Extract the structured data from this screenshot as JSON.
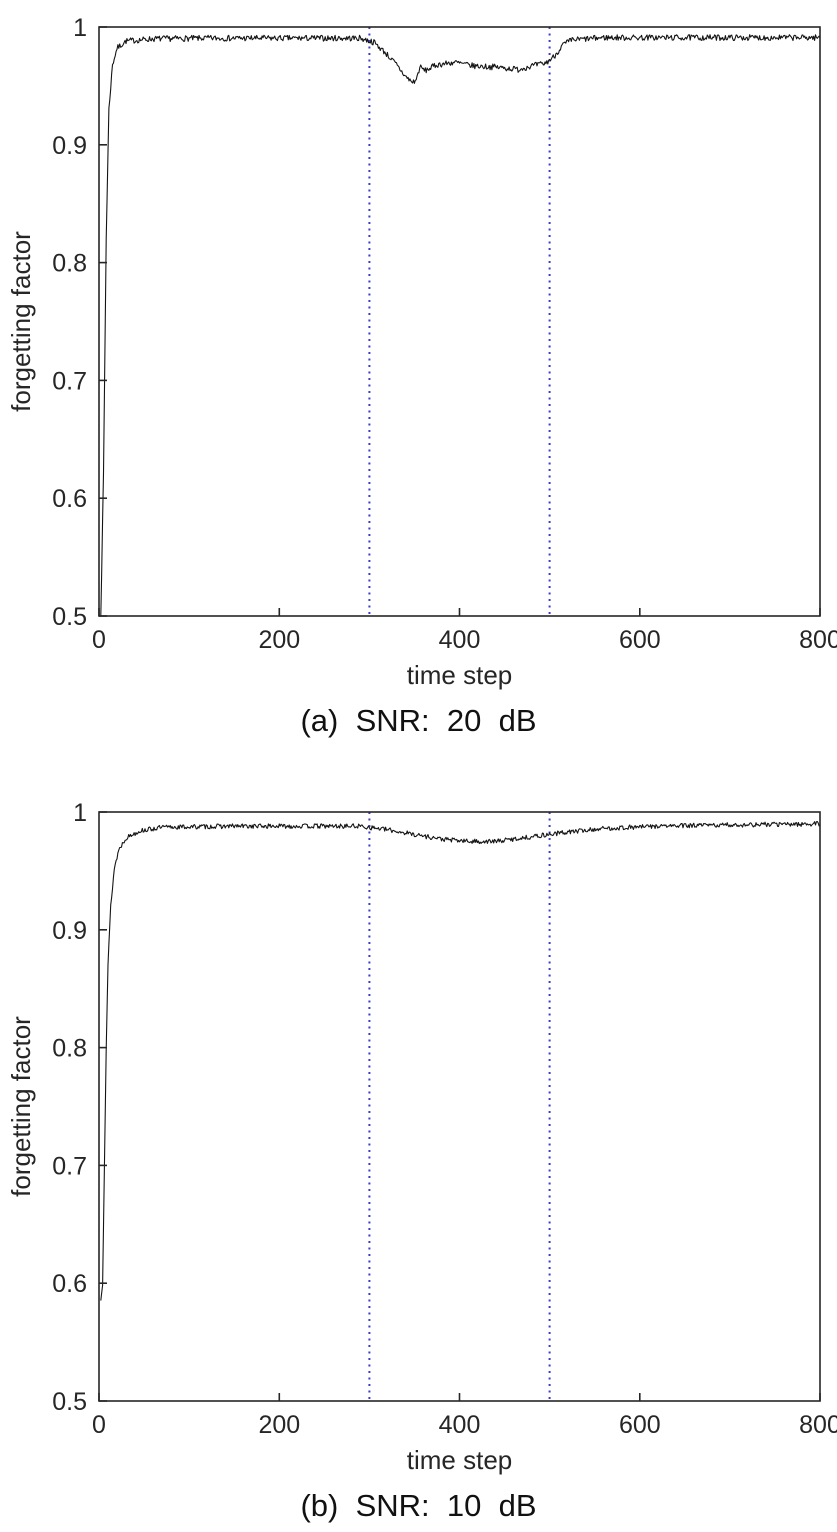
{
  "page": {
    "background": "#ffffff"
  },
  "chart_data": [
    {
      "type": "line",
      "caption": "(a)  SNR:  20  dB",
      "xlabel": "time step",
      "ylabel": "forgetting factor",
      "xlim": [
        0,
        800
      ],
      "ylim": [
        0.5,
        1.0
      ],
      "xticks": [
        0,
        200,
        400,
        600,
        800
      ],
      "yticks": [
        0.5,
        0.6,
        0.7,
        0.8,
        0.9,
        1
      ],
      "grid": false,
      "legend": false,
      "line_color": "#141414",
      "axes_color": "#262626",
      "vlines": {
        "x": [
          300,
          500
        ],
        "color": "#3c3cc8",
        "style": "dotted",
        "meaning": "change-point markers"
      },
      "series": {
        "name": "forgetting factor",
        "noise_amplitude": 0.0025,
        "noise_seed": 7,
        "keypoints": [
          [
            2,
            0.5
          ],
          [
            5,
            0.62
          ],
          [
            8,
            0.82
          ],
          [
            11,
            0.93
          ],
          [
            15,
            0.968
          ],
          [
            20,
            0.982
          ],
          [
            30,
            0.988
          ],
          [
            60,
            0.99
          ],
          [
            120,
            0.9905
          ],
          [
            290,
            0.9905
          ],
          [
            305,
            0.987
          ],
          [
            318,
            0.978
          ],
          [
            330,
            0.968
          ],
          [
            340,
            0.958
          ],
          [
            348,
            0.953
          ],
          [
            352,
            0.955
          ],
          [
            356,
            0.966
          ],
          [
            362,
            0.963
          ],
          [
            375,
            0.968
          ],
          [
            395,
            0.97
          ],
          [
            415,
            0.967
          ],
          [
            440,
            0.966
          ],
          [
            465,
            0.964
          ],
          [
            480,
            0.967
          ],
          [
            495,
            0.969
          ],
          [
            505,
            0.975
          ],
          [
            515,
            0.985
          ],
          [
            525,
            0.989
          ],
          [
            560,
            0.991
          ],
          [
            800,
            0.991
          ]
        ]
      }
    },
    {
      "type": "line",
      "caption": "(b)  SNR:  10  dB",
      "xlabel": "time step",
      "ylabel": "forgetting factor",
      "xlim": [
        0,
        800
      ],
      "ylim": [
        0.5,
        1.0
      ],
      "xticks": [
        0,
        200,
        400,
        600,
        800
      ],
      "yticks": [
        0.5,
        0.6,
        0.7,
        0.8,
        0.9,
        1
      ],
      "grid": false,
      "legend": false,
      "line_color": "#141414",
      "axes_color": "#262626",
      "vlines": {
        "x": [
          300,
          500
        ],
        "color": "#3c3cc8",
        "style": "dotted",
        "meaning": "change-point markers"
      },
      "series": {
        "name": "forgetting factor",
        "noise_amplitude": 0.002,
        "noise_seed": 13,
        "keypoints": [
          [
            2,
            0.585
          ],
          [
            4,
            0.6
          ],
          [
            6,
            0.7
          ],
          [
            8,
            0.8
          ],
          [
            10,
            0.87
          ],
          [
            13,
            0.92
          ],
          [
            17,
            0.952
          ],
          [
            22,
            0.968
          ],
          [
            30,
            0.978
          ],
          [
            45,
            0.984
          ],
          [
            70,
            0.987
          ],
          [
            150,
            0.988
          ],
          [
            290,
            0.988
          ],
          [
            320,
            0.985
          ],
          [
            350,
            0.981
          ],
          [
            380,
            0.977
          ],
          [
            410,
            0.975
          ],
          [
            440,
            0.975
          ],
          [
            470,
            0.978
          ],
          [
            500,
            0.981
          ],
          [
            520,
            0.983
          ],
          [
            560,
            0.986
          ],
          [
            620,
            0.988
          ],
          [
            700,
            0.989
          ],
          [
            800,
            0.99
          ]
        ]
      }
    }
  ]
}
